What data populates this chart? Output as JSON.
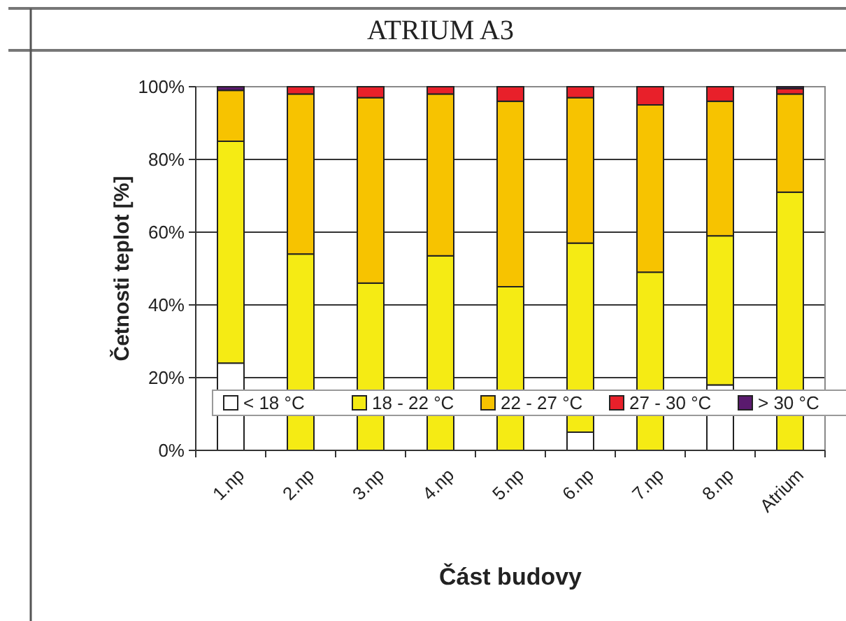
{
  "chart_data": {
    "type": "bar",
    "stacked": true,
    "title": "ATRIUM A3",
    "xlabel": "Část budovy",
    "ylabel": "Četnosti teplot [%]",
    "categories": [
      "1.np",
      "2.np",
      "3.np",
      "4.np",
      "5.np",
      "6.np",
      "7.np",
      "8.np",
      "Atrium"
    ],
    "series": [
      {
        "name": "< 18 °C",
        "color": "#ffffff",
        "values": [
          24,
          0,
          0,
          0,
          0,
          5,
          0,
          18,
          0
        ]
      },
      {
        "name": "18 - 22 °C",
        "color": "#f5eb14",
        "values": [
          61,
          54,
          46,
          53.5,
          45,
          52,
          49,
          41,
          71
        ]
      },
      {
        "name": "22 - 27 °C",
        "color": "#f7c300",
        "values": [
          14,
          44,
          51,
          44.5,
          51,
          40,
          46,
          37,
          27
        ]
      },
      {
        "name": "27 - 30 °C",
        "color": "#e8202a",
        "values": [
          0,
          2,
          3,
          2,
          4,
          3,
          5,
          4,
          1.5
        ]
      },
      {
        "name": "> 30 °C",
        "color": "#5a1a6e",
        "values": [
          1,
          0,
          0,
          0,
          0,
          0,
          0,
          0,
          0.5
        ]
      }
    ],
    "ylim": [
      0,
      100
    ],
    "yticks": [
      {
        "value": 0,
        "label": "0%"
      },
      {
        "value": 20,
        "label": "20%"
      },
      {
        "value": 40,
        "label": "40%"
      },
      {
        "value": 60,
        "label": "60%"
      },
      {
        "value": 80,
        "label": "80%"
      },
      {
        "value": 100,
        "label": "100%"
      }
    ],
    "grid": "y",
    "legend": "bottom"
  }
}
